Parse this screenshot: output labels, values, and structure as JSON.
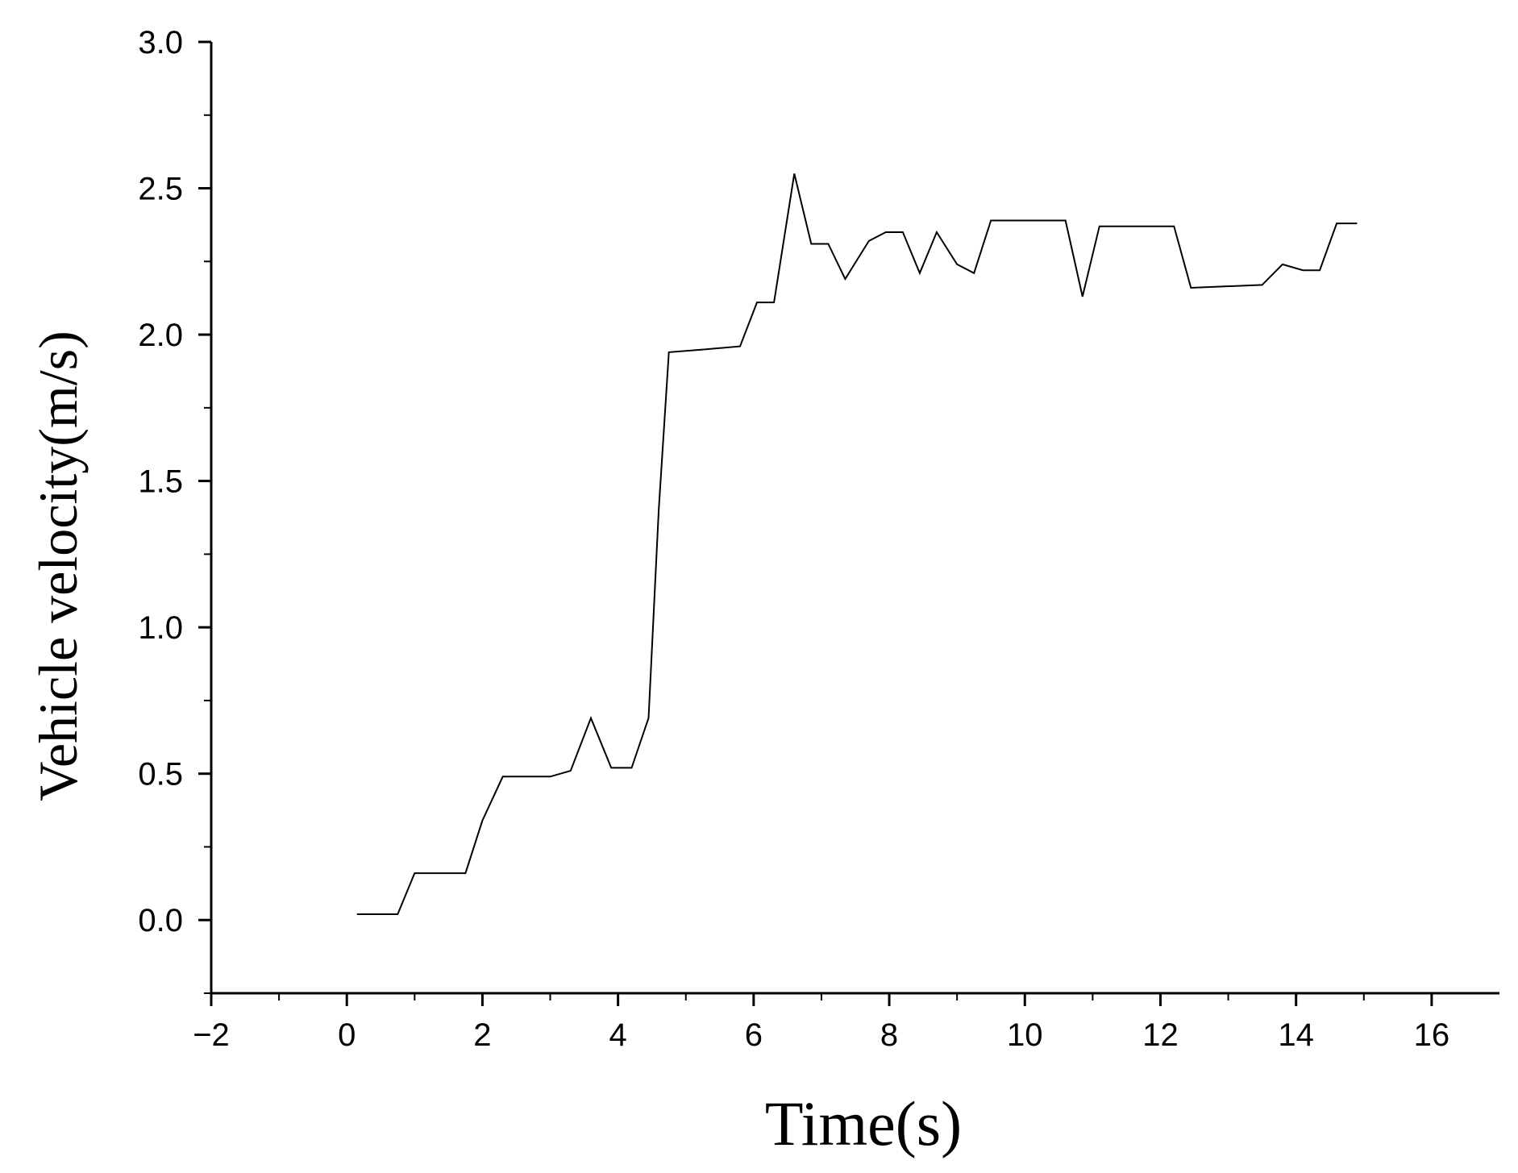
{
  "chart_data": {
    "type": "line",
    "title": "",
    "xlabel": "Time(s)",
    "ylabel": "Vehicle velocity(m/s)",
    "xlim": [
      -2,
      17
    ],
    "ylim": [
      -0.25,
      3.0
    ],
    "xticks": [
      -2,
      0,
      2,
      4,
      6,
      8,
      10,
      12,
      14,
      16
    ],
    "xtick_labels": [
      "−2",
      "0",
      "2",
      "4",
      "6",
      "8",
      "10",
      "12",
      "14",
      "16"
    ],
    "yticks": [
      0.0,
      0.5,
      1.0,
      1.5,
      2.0,
      2.5,
      3.0
    ],
    "ytick_labels": [
      "0.0",
      "0.5",
      "1.0",
      "1.5",
      "2.0",
      "2.5",
      "3.0"
    ],
    "grid": false,
    "legend": "none",
    "line_color": "#000000",
    "series": [
      {
        "x": [
          0.15,
          0.75,
          1.0,
          1.75,
          2.0,
          2.3,
          2.5,
          3.0,
          3.3,
          3.6,
          3.9,
          4.2,
          4.45,
          4.6,
          4.75,
          5.3,
          5.8,
          6.05,
          6.3,
          6.6,
          6.85,
          7.1,
          7.35,
          7.7,
          7.95,
          8.2,
          8.45,
          8.7,
          9.0,
          9.25,
          9.5,
          10.6,
          10.85,
          11.1,
          12.2,
          12.45,
          13.5,
          13.8,
          14.1,
          14.35,
          14.6,
          14.9
        ],
        "y": [
          0.02,
          0.02,
          0.16,
          0.16,
          0.34,
          0.49,
          0.49,
          0.49,
          0.51,
          0.69,
          0.52,
          0.52,
          0.69,
          1.4,
          1.94,
          1.95,
          1.96,
          2.11,
          2.11,
          2.55,
          2.31,
          2.31,
          2.19,
          2.32,
          2.35,
          2.35,
          2.21,
          2.35,
          2.24,
          2.21,
          2.39,
          2.39,
          2.13,
          2.37,
          2.37,
          2.16,
          2.17,
          2.24,
          2.22,
          2.22,
          2.38,
          2.38
        ]
      }
    ]
  }
}
